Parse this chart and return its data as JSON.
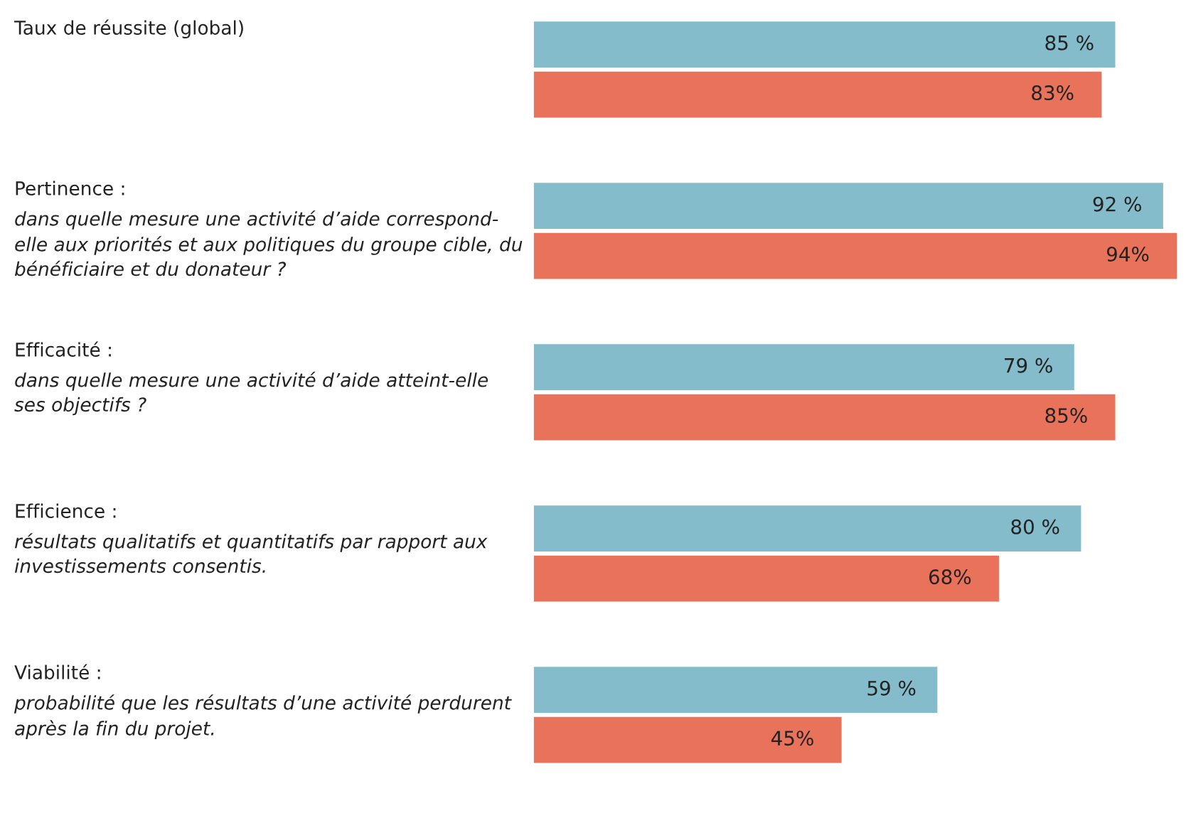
{
  "chart_data": {
    "type": "bar",
    "orientation": "horizontal",
    "categories": [
      "Taux de réussite (global)",
      "Pertinence :\ndans quelle mesure une activité d’aide correspond-\nelle aux priorités et aux politiques du groupe cible, du\nbénéficiaire et du donateur ?",
      "Efficacité :\ndans quelle mesure une activité d’aide atteint-elle\nses objectifs ?",
      "Efficience :\nrésultats qualitatifs et quantitatifs par rapport aux\ninvestissements consentis.",
      "Viabilité :\nprobabilité que les résultats d’une activité perdurent\naprès la fin du projet."
    ],
    "series": [
      {
        "color": "#85bccb",
        "values": [
          85,
          92,
          79,
          80,
          59
        ],
        "value_labels": [
          "85 %",
          "92 %",
          "79 %",
          "80 %",
          "59 %"
        ]
      },
      {
        "color": "#e9725b",
        "values": [
          83,
          94,
          85,
          68,
          45
        ],
        "value_labels": [
          "83%",
          "94%",
          "85%",
          "68%",
          "45%"
        ]
      }
    ]
  }
}
